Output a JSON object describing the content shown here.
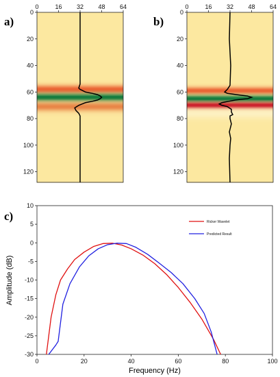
{
  "chart_data": [
    {
      "panel": "a)",
      "type": "heatmap",
      "x_ticks": [
        "0",
        "16",
        "32",
        "48",
        "64"
      ],
      "y_ticks": [
        "0",
        "20",
        "40",
        "60",
        "80",
        "100",
        "120"
      ],
      "xlim": [
        0,
        64
      ],
      "ylim": [
        0,
        128
      ],
      "trace_baseline": 32,
      "trace": [
        [
          0,
          32
        ],
        [
          54,
          32
        ],
        [
          57,
          31
        ],
        [
          58,
          32
        ],
        [
          60,
          36
        ],
        [
          61,
          41
        ],
        [
          62,
          45
        ],
        [
          63,
          47
        ],
        [
          64,
          48
        ],
        [
          65,
          47
        ],
        [
          66,
          45
        ],
        [
          67,
          41
        ],
        [
          68,
          36
        ],
        [
          70,
          31
        ],
        [
          72,
          28
        ],
        [
          74,
          29
        ],
        [
          76,
          31
        ],
        [
          78,
          32
        ],
        [
          128,
          32
        ]
      ],
      "bands": [
        {
          "center": 58,
          "color": "#e84a1f",
          "sigma": 2.2,
          "strength": 0.85
        },
        {
          "center": 64,
          "color": "#0d7a3c",
          "sigma": 2.0,
          "strength": 1.0
        },
        {
          "center": 71,
          "color": "#e05a20",
          "sigma": 2.4,
          "strength": 0.7
        }
      ]
    },
    {
      "panel": "b)",
      "type": "heatmap",
      "x_ticks": [
        "0",
        "16",
        "32",
        "48",
        "64"
      ],
      "y_ticks": [
        "0",
        "20",
        "40",
        "60",
        "80",
        "100",
        "120"
      ],
      "xlim": [
        0,
        64
      ],
      "ylim": [
        0,
        128
      ],
      "trace_baseline": 32,
      "trace": [
        [
          0,
          32
        ],
        [
          20,
          31.5
        ],
        [
          40,
          32.5
        ],
        [
          55,
          32
        ],
        [
          58,
          30
        ],
        [
          60,
          28
        ],
        [
          61,
          30
        ],
        [
          62,
          37
        ],
        [
          63,
          45
        ],
        [
          64,
          48
        ],
        [
          65,
          45
        ],
        [
          66,
          36
        ],
        [
          67,
          31
        ],
        [
          68,
          26
        ],
        [
          69,
          24
        ],
        [
          70,
          26
        ],
        [
          71,
          30
        ],
        [
          73,
          33
        ],
        [
          75,
          33
        ],
        [
          77,
          34
        ],
        [
          78,
          32
        ],
        [
          80,
          32
        ],
        [
          84,
          33
        ],
        [
          90,
          31.5
        ],
        [
          95,
          32.5
        ],
        [
          100,
          32
        ],
        [
          110,
          31.5
        ],
        [
          128,
          32
        ]
      ],
      "bands": [
        {
          "center": 59,
          "color": "#e84a1f",
          "sigma": 1.9,
          "strength": 0.85
        },
        {
          "center": 65,
          "color": "#0d7a3c",
          "sigma": 1.8,
          "strength": 1.0
        },
        {
          "center": 70,
          "color": "#c8101e",
          "sigma": 1.7,
          "strength": 1.0
        },
        {
          "center": 76,
          "color": "#ffffff",
          "sigma": 3.0,
          "strength": 0.35
        }
      ]
    },
    {
      "panel": "c)",
      "type": "line",
      "xlabel": "Frequency (Hz)",
      "ylabel": "Amplitude (dB)",
      "xlim": [
        0,
        100
      ],
      "ylim": [
        -30,
        10
      ],
      "x_ticks": [
        "0",
        "20",
        "40",
        "60",
        "80",
        "100"
      ],
      "y_ticks": [
        "10",
        "5",
        "0",
        "-5",
        "-10",
        "-15",
        "-20",
        "-25",
        "-30"
      ],
      "legend_position": "top-right",
      "series": [
        {
          "name": "Ricker Wavelet",
          "color": "#e01010",
          "points": [
            [
              4,
              -30
            ],
            [
              6,
              -20
            ],
            [
              8,
              -14
            ],
            [
              10,
              -10
            ],
            [
              13,
              -7
            ],
            [
              16,
              -4.5
            ],
            [
              20,
              -2.5
            ],
            [
              24,
              -1
            ],
            [
              28,
              -0.2
            ],
            [
              32,
              -0.1
            ],
            [
              36,
              -0.6
            ],
            [
              40,
              -1.6
            ],
            [
              45,
              -3.3
            ],
            [
              50,
              -5.6
            ],
            [
              55,
              -8.5
            ],
            [
              60,
              -12
            ],
            [
              65,
              -16
            ],
            [
              70,
              -20.5
            ],
            [
              75,
              -26
            ],
            [
              78,
              -30
            ]
          ]
        },
        {
          "name": "Predicted Result",
          "color": "#2020e0",
          "points": [
            [
              5,
              -30
            ],
            [
              8,
              -27.5
            ],
            [
              9,
              -26.5
            ],
            [
              11,
              -16.5
            ],
            [
              14,
              -11
            ],
            [
              18,
              -6.5
            ],
            [
              22,
              -3.5
            ],
            [
              26,
              -1.6
            ],
            [
              30,
              -0.5
            ],
            [
              34,
              -0.1
            ],
            [
              38,
              -0.2
            ],
            [
              42,
              -1.2
            ],
            [
              47,
              -3.1
            ],
            [
              52,
              -5.5
            ],
            [
              57,
              -8
            ],
            [
              62,
              -11
            ],
            [
              67,
              -15
            ],
            [
              71,
              -19
            ],
            [
              74,
              -24
            ],
            [
              76.5,
              -30
            ]
          ]
        }
      ]
    }
  ]
}
